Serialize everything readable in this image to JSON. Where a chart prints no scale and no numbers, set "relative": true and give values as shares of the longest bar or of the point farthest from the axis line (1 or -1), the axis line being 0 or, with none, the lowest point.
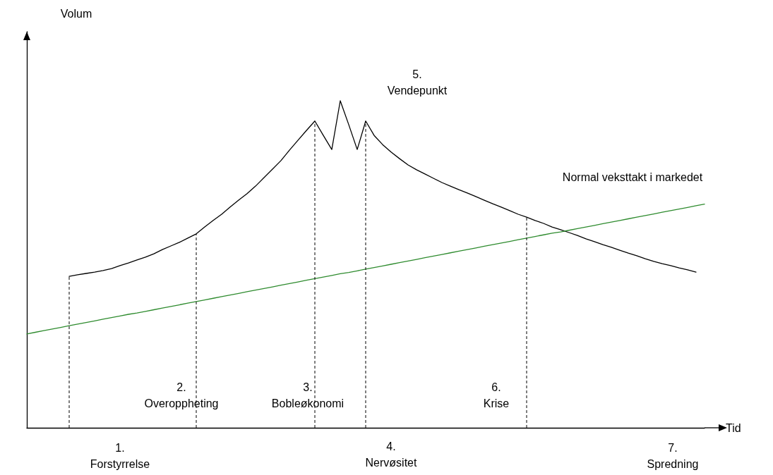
{
  "chart_data": {
    "type": "line",
    "relative": true,
    "xlabel": "Tid",
    "marker": "none",
    "grid": false,
    "legend": false,
    "tick_labels": false,
    "categories": [
      null,
      null,
      null,
      null,
      null,
      null,
      null,
      null,
      null,
      null,
      null,
      null,
      null,
      null,
      null,
      null,
      null,
      null,
      null,
      null,
      null,
      null,
      null,
      null,
      null,
      null,
      null,
      null,
      null,
      null,
      null,
      null,
      null,
      null,
      null,
      null,
      null,
      null,
      null,
      null,
      null,
      null,
      null,
      null,
      null,
      null,
      null,
      null,
      null,
      null,
      null,
      null,
      null,
      null,
      null,
      null,
      null,
      null,
      null,
      null,
      null,
      null,
      null,
      null,
      null,
      null,
      null,
      null,
      null,
      null,
      null,
      null,
      null,
      null,
      null,
      null,
      null,
      null,
      null,
      null,
      null
    ],
    "series": [
      {
        "color": "#000000",
        "values": [
          null,
          null,
          null,
          null,
          null,
          0.463,
          0.468,
          0.472,
          0.476,
          0.481,
          0.487,
          0.496,
          0.504,
          0.513,
          0.522,
          0.532,
          0.545,
          0.556,
          0.567,
          0.58,
          0.593,
          0.614,
          0.634,
          0.653,
          0.675,
          0.696,
          0.716,
          0.739,
          0.765,
          0.791,
          0.817,
          0.849,
          0.879,
          0.909,
          0.938,
          0.894,
          0.851,
          1,
          0.927,
          0.851,
          0.938,
          0.894,
          0.866,
          0.843,
          0.823,
          0.804,
          0.789,
          0.776,
          0.763,
          0.75,
          0.739,
          0.728,
          0.718,
          0.707,
          0.696,
          0.685,
          0.675,
          0.664,
          0.653,
          0.644,
          0.634,
          0.625,
          0.614,
          0.606,
          0.597,
          0.588,
          0.578,
          0.569,
          0.56,
          0.552,
          0.543,
          0.534,
          0.526,
          0.517,
          0.509,
          0.502,
          0.496,
          0.489,
          0.483,
          0.476,
          null
        ]
      },
      {
        "name": "Normal veksttakt i markedet",
        "color": "#2e8b2e",
        "values": [
          0.287,
          0.292,
          0.297,
          0.302,
          0.307,
          0.312,
          0.317,
          0.322,
          0.327,
          0.332,
          0.337,
          0.342,
          0.347,
          0.351,
          0.356,
          0.361,
          0.366,
          0.371,
          0.376,
          0.381,
          0.386,
          0.391,
          0.396,
          0.401,
          0.406,
          0.411,
          0.416,
          0.421,
          0.426,
          0.431,
          0.436,
          0.441,
          0.446,
          0.451,
          0.456,
          0.461,
          0.466,
          0.471,
          0.475,
          0.48,
          0.485,
          0.49,
          0.495,
          0.5,
          0.505,
          0.51,
          0.515,
          0.52,
          0.525,
          0.53,
          0.535,
          0.54,
          0.545,
          0.55,
          0.555,
          0.56,
          0.565,
          0.57,
          0.575,
          0.58,
          0.585,
          0.59,
          0.595,
          0.599,
          0.604,
          0.609,
          0.614,
          0.619,
          0.624,
          0.629,
          0.634,
          0.639,
          0.644,
          0.649,
          0.654,
          0.659,
          0.664,
          0.669,
          0.674,
          0.679,
          0.684
        ]
      }
    ],
    "annotations": [
      "1.\nForstyrrelse",
      "2.\nOveroppheting",
      "3.\nBobleøkonomi",
      "4.\nNervøsitet",
      "5.\nVendepunkt",
      "6.\nKrise",
      "7.\nSpredning",
      "Volum"
    ]
  }
}
